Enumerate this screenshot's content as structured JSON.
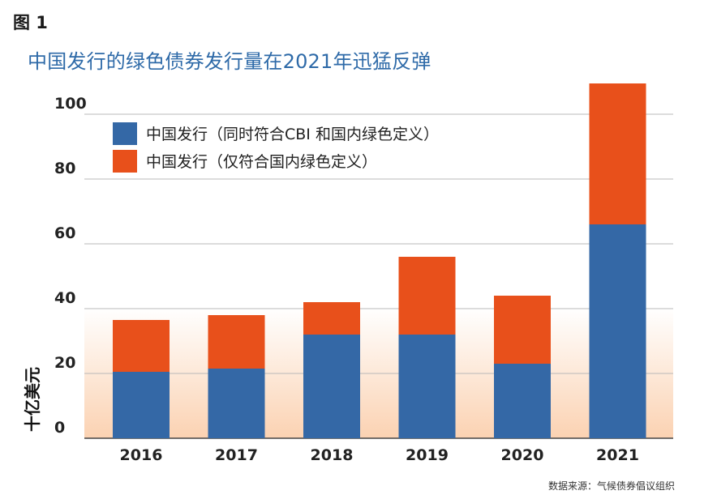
{
  "figure_label": "图 1",
  "source": "数据来源：气候债券倡议组织",
  "chart_data": {
    "type": "bar",
    "stacked": true,
    "title": "中国发行的绿色债券发行量在2021年迅猛反弹",
    "ylabel": "十亿美元",
    "xlabel": "",
    "categories": [
      "2016",
      "2017",
      "2018",
      "2019",
      "2020",
      "2021"
    ],
    "series": [
      {
        "name": "中国发行（同时符合CBI 和国内绿色定义）",
        "color": "#3468a6",
        "values": [
          20.5,
          21.5,
          32,
          32,
          23,
          66
        ]
      },
      {
        "name": "中国发行（仅符合国内绿色定义）",
        "color": "#e8501b",
        "values": [
          16,
          16.5,
          10,
          24,
          21,
          43.5
        ]
      }
    ],
    "ylim": [
      0,
      110
    ],
    "yticks": [
      "0",
      "20",
      "40",
      "60",
      "80",
      "100"
    ],
    "grid": true,
    "legend_position": "top-left"
  }
}
